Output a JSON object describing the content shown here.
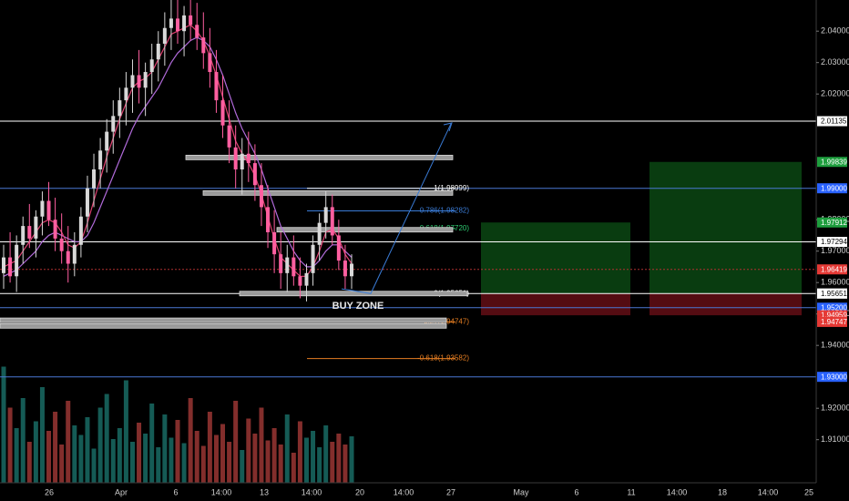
{
  "chart_data": {
    "type": "candlestick",
    "title": "",
    "xlabel": "",
    "ylabel": "",
    "ylim": [
      1.9012,
      2.0502
    ],
    "grid": false,
    "x_tick_labels": [
      "26",
      "Apr",
      "6",
      "14:00",
      "13",
      "14:00",
      "20",
      "14:00",
      "27",
      "May",
      "6",
      "11",
      "14:00",
      "18",
      "14:00",
      "25"
    ],
    "y_tick_labels": [
      {
        "value": 2.04,
        "label": "2.04000"
      },
      {
        "value": 2.03,
        "label": "2.03000"
      },
      {
        "value": 2.02,
        "label": "2.02000"
      },
      {
        "value": 1.98,
        "label": "1.98000"
      },
      {
        "value": 1.97,
        "label": "1.97000"
      },
      {
        "value": 1.96,
        "label": "1.96000"
      },
      {
        "value": 1.95,
        "label": "1.95000"
      },
      {
        "value": 1.94,
        "label": "1.94000"
      },
      {
        "value": 1.92,
        "label": "1.92000"
      },
      {
        "value": 1.91,
        "label": "1.91000"
      }
    ],
    "horizontal_levels": [
      {
        "value": 2.01135,
        "label": "2.01135",
        "color": "#ffffff",
        "tag_bg": "#ffffff",
        "tag_fg": "#000000",
        "style": "solid"
      },
      {
        "value": 1.99,
        "label": "1.99000",
        "color": "#4a78d4",
        "tag_bg": "#2962ff",
        "tag_fg": "#ffffff",
        "style": "solid"
      },
      {
        "value": 1.97294,
        "label": "1.97294",
        "color": "#ffffff",
        "tag_bg": "#ffffff",
        "tag_fg": "#000000",
        "style": "solid"
      },
      {
        "value": 1.96419,
        "label": "1.96419",
        "color": "#b03030",
        "tag_bg": "#e53935",
        "tag_fg": "#ffffff",
        "style": "dotted"
      },
      {
        "value": 1.9565,
        "label": "1.95651",
        "color": "#ffffff",
        "tag_bg": "#ffffff",
        "tag_fg": "#000000",
        "style": "solid"
      },
      {
        "value": 1.952,
        "label": "1.95200",
        "color": "#4a78d4",
        "tag_bg": "#2962ff",
        "tag_fg": "#ffffff",
        "style": "solid"
      },
      {
        "value": 1.93,
        "label": "1.93000",
        "color": "#4a78d4",
        "tag_bg": "#2962ff",
        "tag_fg": "#ffffff",
        "style": "solid"
      }
    ],
    "price_tags": [
      {
        "value": 1.99839,
        "label": "1.99839",
        "bg": "#1e9e3e",
        "fg": "#ffffff"
      },
      {
        "value": 1.97912,
        "label": "1.97912",
        "bg": "#1e9e3e",
        "fg": "#ffffff"
      },
      {
        "value": 1.95651,
        "label": "1.95651",
        "bg": "#ffffff",
        "fg": "#000000"
      },
      {
        "value": 1.94959,
        "label": "1.94959",
        "bg": "#e53935",
        "fg": "#ffffff"
      },
      {
        "value": 1.94747,
        "label": "1.94747",
        "bg": "#e53935",
        "fg": "#ffffff"
      }
    ],
    "fibonacci": [
      {
        "level": "1",
        "value": 1.98999,
        "label": "1(1.98999)",
        "color": "#ffffff"
      },
      {
        "level": "0.786",
        "value": 1.98282,
        "label": "0.786(1.98282)",
        "color": "#3a7bd5"
      },
      {
        "level": "0.618",
        "value": 1.9772,
        "label": "0.618(1.97720)",
        "color": "#2ecc71"
      },
      {
        "level": "0",
        "value": 1.95651,
        "label": "0(1.95651)",
        "color": "#ffffff"
      },
      {
        "level": "-0.27",
        "value": 1.94747,
        "label": "-0.27(1.94747)",
        "color": "#e67e22"
      },
      {
        "level": "-0.618",
        "value": 1.93582,
        "label": "-0.618(1.93582)",
        "color": "#e67e22"
      }
    ],
    "annotations": [
      {
        "text": "BUY ZONE",
        "value": 1.9525
      }
    ],
    "zones": [
      {
        "value": 1.9565
      },
      {
        "value": 1.948
      },
      {
        "value": 1.9885
      },
      {
        "value": 1.9998
      },
      {
        "value": 1.9768
      },
      {
        "value": 1.9462
      }
    ],
    "positions": [
      {
        "entry": 1.9565,
        "target": 1.97912,
        "stop": 1.94959
      },
      {
        "entry": 1.9565,
        "target": 1.99839,
        "stop": 1.94959
      }
    ],
    "series": {
      "ohlc": [
        [
          1.963,
          1.972,
          1.958,
          1.968
        ],
        [
          1.968,
          1.976,
          1.96,
          1.962
        ],
        [
          1.962,
          1.975,
          1.957,
          1.972
        ],
        [
          1.972,
          1.981,
          1.966,
          1.978
        ],
        [
          1.978,
          1.985,
          1.971,
          1.974
        ],
        [
          1.974,
          1.983,
          1.968,
          1.981
        ],
        [
          1.981,
          1.989,
          1.975,
          1.986
        ],
        [
          1.986,
          1.992,
          1.978,
          1.98
        ],
        [
          1.98,
          1.987,
          1.97,
          1.974
        ],
        [
          1.974,
          1.982,
          1.966,
          1.97
        ],
        [
          1.97,
          1.978,
          1.96,
          1.966
        ],
        [
          1.966,
          1.976,
          1.962,
          1.972
        ],
        [
          1.972,
          1.984,
          1.968,
          1.981
        ],
        [
          1.981,
          1.994,
          1.976,
          1.99
        ],
        [
          1.99,
          2.001,
          1.984,
          1.996
        ],
        [
          1.996,
          2.006,
          1.99,
          2.002
        ],
        [
          2.002,
          2.012,
          1.995,
          2.008
        ],
        [
          2.008,
          2.018,
          2.001,
          2.013
        ],
        [
          2.013,
          2.022,
          2.006,
          2.018
        ],
        [
          2.018,
          2.027,
          2.01,
          2.022
        ],
        [
          2.022,
          2.031,
          2.014,
          2.026
        ],
        [
          2.026,
          2.034,
          2.017,
          2.022
        ],
        [
          2.022,
          2.03,
          2.013,
          2.027
        ],
        [
          2.027,
          2.036,
          2.02,
          2.031
        ],
        [
          2.031,
          2.04,
          2.024,
          2.036
        ],
        [
          2.036,
          2.046,
          2.029,
          2.041
        ],
        [
          2.041,
          2.05,
          2.034,
          2.044
        ],
        [
          2.044,
          2.05,
          2.036,
          2.04
        ],
        [
          2.04,
          2.048,
          2.032,
          2.045
        ],
        [
          2.045,
          2.05,
          2.037,
          2.042
        ],
        [
          2.042,
          2.049,
          2.034,
          2.038
        ],
        [
          2.038,
          2.046,
          2.028,
          2.033
        ],
        [
          2.033,
          2.041,
          2.022,
          2.027
        ],
        [
          2.027,
          2.034,
          2.014,
          2.018
        ],
        [
          2.018,
          2.026,
          2.006,
          2.01
        ],
        [
          2.01,
          2.018,
          1.998,
          2.003
        ],
        [
          2.003,
          2.01,
          1.99,
          1.996
        ],
        [
          1.996,
          2.006,
          1.988,
          2.001
        ],
        [
          2.001,
          2.008,
          1.992,
          1.998
        ],
        [
          1.998,
          2.004,
          1.986,
          1.991
        ],
        [
          1.991,
          1.998,
          1.978,
          1.984
        ],
        [
          1.984,
          1.991,
          1.971,
          1.976
        ],
        [
          1.976,
          1.983,
          1.963,
          1.969
        ],
        [
          1.969,
          1.976,
          1.958,
          1.963
        ],
        [
          1.963,
          1.972,
          1.957,
          1.968
        ],
        [
          1.968,
          1.975,
          1.959,
          1.962
        ],
        [
          1.962,
          1.968,
          1.955,
          1.959
        ],
        [
          1.959,
          1.966,
          1.954,
          1.963
        ],
        [
          1.963,
          1.975,
          1.959,
          1.972
        ],
        [
          1.972,
          1.982,
          1.967,
          1.979
        ],
        [
          1.979,
          1.989,
          1.974,
          1.984
        ],
        [
          1.984,
          1.988,
          1.972,
          1.975
        ],
        [
          1.975,
          1.98,
          1.964,
          1.967
        ],
        [
          1.967,
          1.972,
          1.958,
          1.962
        ],
        [
          1.962,
          1.969,
          1.958,
          1.966
        ]
      ],
      "ma_fast": [
        1.965,
        1.966,
        1.967,
        1.97,
        1.973,
        1.976,
        1.979,
        1.98,
        1.979,
        1.976,
        1.972,
        1.971,
        1.973,
        1.979,
        1.986,
        1.993,
        2.0,
        2.006,
        2.012,
        2.017,
        2.022,
        2.024,
        2.025,
        2.027,
        2.031,
        2.035,
        2.039,
        2.04,
        2.041,
        2.042,
        2.04,
        2.037,
        2.032,
        2.026,
        2.019,
        2.012,
        2.005,
        2.001,
        1.998,
        1.994,
        1.988,
        1.981,
        1.974,
        1.968,
        1.966,
        1.964,
        1.962,
        1.962,
        1.965,
        1.97,
        1.976,
        1.977,
        1.974,
        1.969,
        1.966
      ],
      "ma_slow": [
        1.962,
        1.963,
        1.964,
        1.966,
        1.968,
        1.97,
        1.973,
        1.975,
        1.976,
        1.975,
        1.974,
        1.973,
        1.973,
        1.975,
        1.979,
        1.984,
        1.989,
        1.994,
        1.999,
        2.004,
        2.009,
        2.013,
        2.016,
        2.019,
        2.022,
        2.026,
        2.03,
        2.033,
        2.035,
        2.037,
        2.038,
        2.037,
        2.035,
        2.031,
        2.026,
        2.02,
        2.014,
        2.009,
        2.005,
        2.001,
        1.996,
        1.99,
        1.984,
        1.978,
        1.974,
        1.97,
        1.967,
        1.965,
        1.965,
        1.967,
        1.97,
        1.972,
        1.972,
        1.97,
        1.968
      ],
      "volume": [
        0.85,
        0.55,
        0.4,
        0.62,
        0.3,
        0.45,
        0.7,
        0.38,
        0.52,
        0.28,
        0.6,
        0.42,
        0.35,
        0.48,
        0.25,
        0.55,
        0.65,
        0.32,
        0.4,
        0.75,
        0.3,
        0.44,
        0.36,
        0.58,
        0.26,
        0.5,
        0.33,
        0.46,
        0.29,
        0.62,
        0.38,
        0.27,
        0.52,
        0.35,
        0.43,
        0.3,
        0.6,
        0.24,
        0.47,
        0.36,
        0.55,
        0.31,
        0.4,
        0.28,
        0.5,
        0.22,
        0.45,
        0.33,
        0.38,
        0.26,
        0.42,
        0.3,
        0.36,
        0.28,
        0.34
      ]
    }
  }
}
